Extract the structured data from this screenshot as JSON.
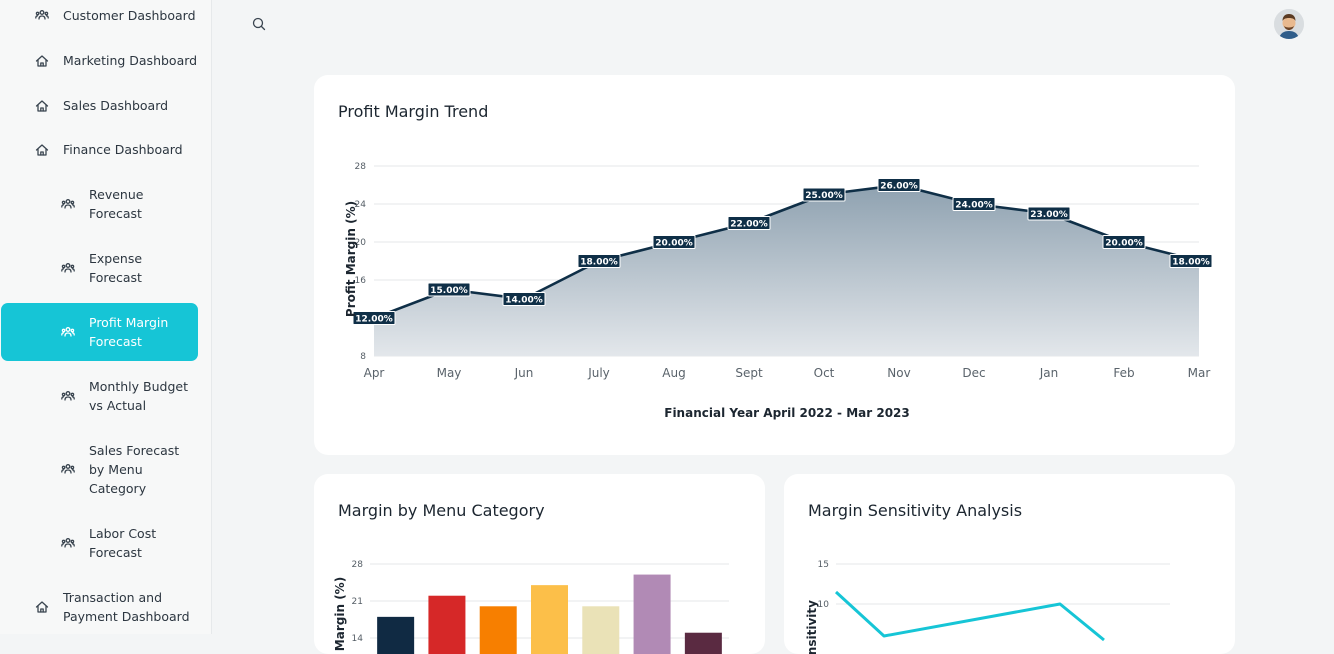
{
  "sidebar": {
    "items": [
      {
        "label": "Customer Dashboard",
        "icon": "users-icon"
      },
      {
        "label": "Marketing Dashboard",
        "icon": "home-icon"
      },
      {
        "label": "Sales Dashboard",
        "icon": "home-icon"
      },
      {
        "label": "Finance Dashboard",
        "icon": "home-icon"
      },
      {
        "label": "Revenue Forecast",
        "icon": "users-icon"
      },
      {
        "label": "Expense Forecast",
        "icon": "users-icon"
      },
      {
        "label": "Profit Margin Forecast",
        "icon": "users-icon",
        "active": true
      },
      {
        "label": "Monthly Budget vs Actual",
        "icon": "users-icon"
      },
      {
        "label": "Sales Forecast by Menu Category",
        "icon": "users-icon"
      },
      {
        "label": "Labor Cost Forecast",
        "icon": "users-icon"
      },
      {
        "label": "Transaction and Payment Dashboard",
        "icon": "home-icon"
      }
    ]
  },
  "topbar": {
    "search_icon": "search-icon",
    "avatar_icon": "user-avatar"
  },
  "colors": {
    "accent": "#16c5d6",
    "line": "#0f2f47",
    "grid": "#e4e7ea"
  },
  "cards": {
    "trend_title": "Profit Margin Trend",
    "category_title": "Margin by Menu Category",
    "sensitivity_title": "Margin Sensitivity Analysis"
  },
  "chart_data": [
    {
      "type": "area",
      "title": "Profit Margin Trend",
      "xlabel": "Financial Year April 2022 - Mar 2023",
      "ylabel": "Profit Margin (%)",
      "categories": [
        "Apr",
        "May",
        "Jun",
        "July",
        "Aug",
        "Sept",
        "Oct",
        "Nov",
        "Dec",
        "Jan",
        "Feb",
        "Mar"
      ],
      "values": [
        12,
        15,
        14,
        18,
        20,
        22,
        25,
        26,
        24,
        23,
        20,
        18
      ],
      "data_labels": [
        "12.00%",
        "15.00%",
        "14.00%",
        "18.00%",
        "20.00%",
        "22.00%",
        "25.00%",
        "26.00%",
        "24.00%",
        "23.00%",
        "20.00%",
        "18.00%"
      ],
      "yticks": [
        8,
        12,
        16,
        20,
        24,
        28
      ],
      "ytick_labels": [
        "8",
        "",
        "16",
        "20",
        "24",
        "28"
      ],
      "ylim": [
        8,
        28
      ],
      "grid": true
    },
    {
      "type": "bar",
      "title": "Margin by Menu Category",
      "ylabel": "Margin (%)",
      "values": [
        18,
        22,
        20,
        24,
        20,
        26,
        15
      ],
      "colors": [
        "#102a43",
        "#d62828",
        "#f77f00",
        "#fcbf49",
        "#eae2b7",
        "#b18ab5",
        "#5a2a41"
      ],
      "yticks": [
        14,
        21,
        28
      ],
      "ylim": [
        7,
        28
      ],
      "grid": true
    },
    {
      "type": "line",
      "title": "Margin Sensitivity Analysis",
      "ylabel": "Sensitivity",
      "yticks": [
        10,
        15
      ],
      "ylim": [
        0,
        15
      ],
      "series": [
        {
          "values": [
            11.5,
            6,
            10,
            5.5
          ],
          "color": "#16c5d6"
        }
      ],
      "grid": true
    }
  ]
}
